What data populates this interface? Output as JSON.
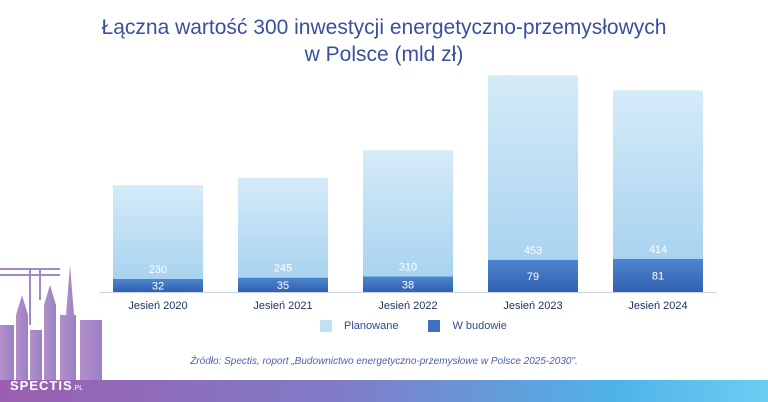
{
  "title": {
    "line1": "Łączna wartość 300 inwestycji energetyczno-przemysłowych",
    "line2": "w Polsce (mld zł)"
  },
  "legend": {
    "planned_label": "Planowane",
    "building_label": "W budowie"
  },
  "source": "Źródło: Spectis, roport „Budownictwo energetyczno-przemysłowe w Polsce 2025-2030\".",
  "logo": {
    "main": "SPECTIS",
    "suffix": ".PL"
  },
  "colors": {
    "title": "#3a4f9e",
    "planned": "#bfe0f5",
    "building": "#3f6fc0"
  },
  "chart_data": {
    "type": "bar",
    "stacked": true,
    "categories": [
      "Jesień 2020",
      "Jesień 2021",
      "Jesień 2022",
      "Jesień 2023",
      "Jesień 2024"
    ],
    "series": [
      {
        "name": "W budowie",
        "values": [
          32,
          35,
          38,
          79,
          81
        ]
      },
      {
        "name": "Planowane",
        "values": [
          230,
          245,
          310,
          453,
          414
        ]
      }
    ],
    "title": "Łączna wartość 300 inwestycji energetyczno-przemysłowych w Polsce (mld zł)",
    "xlabel": "",
    "ylabel": "",
    "ylim": [
      0,
      540
    ],
    "grid": false,
    "legend_position": "bottom"
  }
}
